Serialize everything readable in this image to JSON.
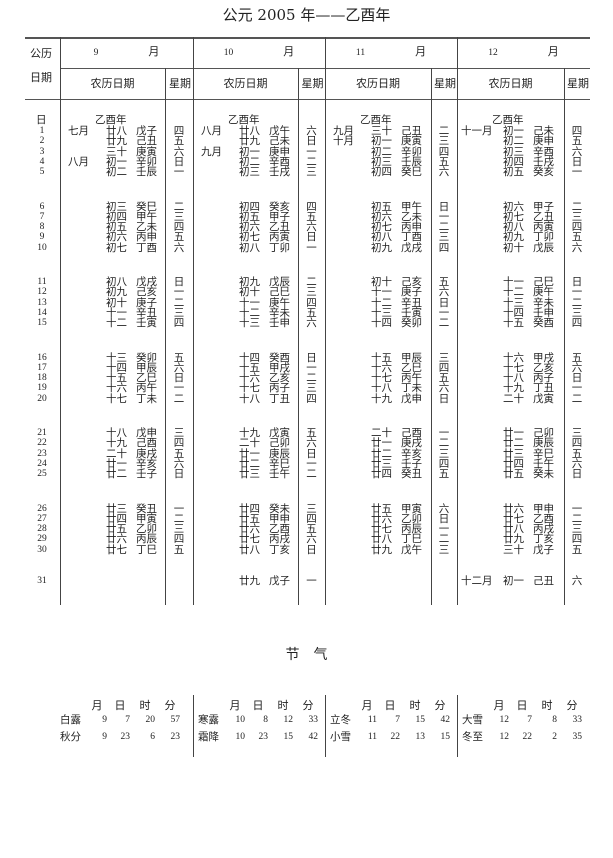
{
  "title": "公元 2005 年——乙酉年",
  "header": {
    "gregorian_date_label_1": "公历",
    "gregorian_date_label_2": "日期",
    "lunar_label": "农历日期",
    "weekday_label": "星期",
    "day_label": "日"
  },
  "days": [
    "1",
    "2",
    "3",
    "4",
    "5",
    "6",
    "7",
    "8",
    "9",
    "10",
    "11",
    "12",
    "13",
    "14",
    "15",
    "16",
    "17",
    "18",
    "19",
    "20",
    "21",
    "22",
    "23",
    "24",
    "25",
    "26",
    "27",
    "28",
    "29",
    "30",
    "31"
  ],
  "months": [
    {
      "num": "9",
      "unit": "月",
      "year_label": "乙酉年",
      "rows": [
        [
          "七月",
          "廿八",
          "戊子",
          "四"
        ],
        [
          "",
          "廿九",
          "己丑",
          "五"
        ],
        [
          "",
          "三十",
          "庚寅",
          "六"
        ],
        [
          "八月",
          "初一",
          "辛卯",
          "日"
        ],
        [
          "",
          "初二",
          "壬辰",
          "一"
        ],
        [
          "",
          "初三",
          "癸巳",
          "二"
        ],
        [
          "",
          "初四",
          "甲午",
          "三"
        ],
        [
          "",
          "初五",
          "乙未",
          "四"
        ],
        [
          "",
          "初六",
          "丙申",
          "五"
        ],
        [
          "",
          "初七",
          "丁酉",
          "六"
        ],
        [
          "",
          "初八",
          "戊戌",
          "日"
        ],
        [
          "",
          "初九",
          "己亥",
          "一"
        ],
        [
          "",
          "初十",
          "庚子",
          "二"
        ],
        [
          "",
          "十一",
          "辛丑",
          "三"
        ],
        [
          "",
          "十二",
          "壬寅",
          "四"
        ],
        [
          "",
          "十三",
          "癸卯",
          "五"
        ],
        [
          "",
          "十四",
          "甲辰",
          "六"
        ],
        [
          "",
          "十五",
          "乙巳",
          "日"
        ],
        [
          "",
          "十六",
          "丙午",
          "一"
        ],
        [
          "",
          "十七",
          "丁未",
          "二"
        ],
        [
          "",
          "十八",
          "戊申",
          "三"
        ],
        [
          "",
          "十九",
          "己酉",
          "四"
        ],
        [
          "",
          "二十",
          "庚戌",
          "五"
        ],
        [
          "",
          "廿一",
          "辛亥",
          "六"
        ],
        [
          "",
          "廿二",
          "壬子",
          "日"
        ],
        [
          "",
          "廿三",
          "癸丑",
          "一"
        ],
        [
          "",
          "廿四",
          "甲寅",
          "二"
        ],
        [
          "",
          "廿五",
          "乙卯",
          "三"
        ],
        [
          "",
          "廿六",
          "丙辰",
          "四"
        ],
        [
          "",
          "廿七",
          "丁巳",
          "五"
        ]
      ]
    },
    {
      "num": "10",
      "unit": "月",
      "year_label": "乙酉年",
      "rows": [
        [
          "八月",
          "廿八",
          "戊午",
          "六"
        ],
        [
          "",
          "廿九",
          "己未",
          "日"
        ],
        [
          "九月",
          "初一",
          "庚申",
          "一"
        ],
        [
          "",
          "初二",
          "辛酉",
          "二"
        ],
        [
          "",
          "初三",
          "壬戌",
          "三"
        ],
        [
          "",
          "初四",
          "癸亥",
          "四"
        ],
        [
          "",
          "初五",
          "甲子",
          "五"
        ],
        [
          "",
          "初六",
          "乙丑",
          "六"
        ],
        [
          "",
          "初七",
          "丙寅",
          "日"
        ],
        [
          "",
          "初八",
          "丁卯",
          "一"
        ],
        [
          "",
          "初九",
          "戊辰",
          "二"
        ],
        [
          "",
          "初十",
          "己巳",
          "三"
        ],
        [
          "",
          "十一",
          "庚午",
          "四"
        ],
        [
          "",
          "十二",
          "辛未",
          "五"
        ],
        [
          "",
          "十三",
          "壬申",
          "六"
        ],
        [
          "",
          "十四",
          "癸酉",
          "日"
        ],
        [
          "",
          "十五",
          "甲戌",
          "一"
        ],
        [
          "",
          "十六",
          "乙亥",
          "二"
        ],
        [
          "",
          "十七",
          "丙子",
          "三"
        ],
        [
          "",
          "十八",
          "丁丑",
          "四"
        ],
        [
          "",
          "十九",
          "戊寅",
          "五"
        ],
        [
          "",
          "二十",
          "己卯",
          "六"
        ],
        [
          "",
          "廿一",
          "庚辰",
          "日"
        ],
        [
          "",
          "廿二",
          "辛巳",
          "一"
        ],
        [
          "",
          "廿三",
          "壬午",
          "二"
        ],
        [
          "",
          "廿四",
          "癸未",
          "三"
        ],
        [
          "",
          "廿五",
          "甲申",
          "四"
        ],
        [
          "",
          "廿六",
          "乙酉",
          "五"
        ],
        [
          "",
          "廿七",
          "丙戌",
          "六"
        ],
        [
          "",
          "廿八",
          "丁亥",
          "日"
        ],
        [
          "",
          "廿九",
          "戊子",
          "一"
        ]
      ]
    },
    {
      "num": "11",
      "unit": "月",
      "year_label": "乙酉年",
      "rows": [
        [
          "九月",
          "三十",
          "己丑",
          "二"
        ],
        [
          "十月",
          "初一",
          "庚寅",
          "三"
        ],
        [
          "",
          "初二",
          "辛卯",
          "四"
        ],
        [
          "",
          "初三",
          "壬辰",
          "五"
        ],
        [
          "",
          "初四",
          "癸巳",
          "六"
        ],
        [
          "",
          "初五",
          "甲午",
          "日"
        ],
        [
          "",
          "初六",
          "乙未",
          "一"
        ],
        [
          "",
          "初七",
          "丙申",
          "二"
        ],
        [
          "",
          "初八",
          "丁酉",
          "三"
        ],
        [
          "",
          "初九",
          "戊戌",
          "四"
        ],
        [
          "",
          "初十",
          "己亥",
          "五"
        ],
        [
          "",
          "十一",
          "庚子",
          "六"
        ],
        [
          "",
          "十二",
          "辛丑",
          "日"
        ],
        [
          "",
          "十三",
          "壬寅",
          "一"
        ],
        [
          "",
          "十四",
          "癸卯",
          "二"
        ],
        [
          "",
          "十五",
          "甲辰",
          "三"
        ],
        [
          "",
          "十六",
          "乙巳",
          "四"
        ],
        [
          "",
          "十七",
          "丙午",
          "五"
        ],
        [
          "",
          "十八",
          "丁未",
          "六"
        ],
        [
          "",
          "十九",
          "戊申",
          "日"
        ],
        [
          "",
          "二十",
          "己酉",
          "一"
        ],
        [
          "",
          "廿一",
          "庚戌",
          "二"
        ],
        [
          "",
          "廿二",
          "辛亥",
          "三"
        ],
        [
          "",
          "廿三",
          "壬子",
          "四"
        ],
        [
          "",
          "廿四",
          "癸丑",
          "五"
        ],
        [
          "",
          "廿五",
          "甲寅",
          "六"
        ],
        [
          "",
          "廿六",
          "乙卯",
          "日"
        ],
        [
          "",
          "廿七",
          "丙辰",
          "一"
        ],
        [
          "",
          "廿八",
          "丁巳",
          "二"
        ],
        [
          "",
          "廿九",
          "戊午",
          "三"
        ]
      ]
    },
    {
      "num": "12",
      "unit": "月",
      "year_label": "乙酉年",
      "rows": [
        [
          "十一月",
          "初一",
          "己未",
          "四"
        ],
        [
          "",
          "初二",
          "庚申",
          "五"
        ],
        [
          "",
          "初三",
          "辛酉",
          "六"
        ],
        [
          "",
          "初四",
          "壬戌",
          "日"
        ],
        [
          "",
          "初五",
          "癸亥",
          "一"
        ],
        [
          "",
          "初六",
          "甲子",
          "二"
        ],
        [
          "",
          "初七",
          "乙丑",
          "三"
        ],
        [
          "",
          "初八",
          "丙寅",
          "四"
        ],
        [
          "",
          "初九",
          "丁卯",
          "五"
        ],
        [
          "",
          "初十",
          "戊辰",
          "六"
        ],
        [
          "",
          "十一",
          "己巳",
          "日"
        ],
        [
          "",
          "十二",
          "庚午",
          "一"
        ],
        [
          "",
          "十三",
          "辛未",
          "二"
        ],
        [
          "",
          "十四",
          "壬申",
          "三"
        ],
        [
          "",
          "十五",
          "癸酉",
          "四"
        ],
        [
          "",
          "十六",
          "甲戌",
          "五"
        ],
        [
          "",
          "十七",
          "乙亥",
          "六"
        ],
        [
          "",
          "十八",
          "丙子",
          "日"
        ],
        [
          "",
          "十九",
          "丁丑",
          "一"
        ],
        [
          "",
          "二十",
          "戊寅",
          "二"
        ],
        [
          "",
          "廿一",
          "己卯",
          "三"
        ],
        [
          "",
          "廿二",
          "庚辰",
          "四"
        ],
        [
          "",
          "廿三",
          "辛巳",
          "五"
        ],
        [
          "",
          "廿四",
          "壬午",
          "六"
        ],
        [
          "",
          "廿五",
          "癸未",
          "日"
        ],
        [
          "",
          "廿六",
          "甲申",
          "一"
        ],
        [
          "",
          "廿七",
          "乙酉",
          "二"
        ],
        [
          "",
          "廿八",
          "丙戌",
          "三"
        ],
        [
          "",
          "廿九",
          "丁亥",
          "四"
        ],
        [
          "",
          "三十",
          "戊子",
          "五"
        ],
        [
          "十二月",
          "初一",
          "己丑",
          "六"
        ]
      ]
    }
  ],
  "solar_terms": {
    "title": "节　气",
    "columns": [
      "月",
      "日",
      "时",
      "分"
    ],
    "blocks": [
      [
        [
          "白露",
          "9",
          "7",
          "20",
          "57"
        ],
        [
          "秋分",
          "9",
          "23",
          "6",
          "23"
        ]
      ],
      [
        [
          "寒露",
          "10",
          "8",
          "12",
          "33"
        ],
        [
          "霜降",
          "10",
          "23",
          "15",
          "42"
        ]
      ],
      [
        [
          "立冬",
          "11",
          "7",
          "15",
          "42"
        ],
        [
          "小雪",
          "11",
          "22",
          "13",
          "15"
        ]
      ],
      [
        [
          "大雪",
          "12",
          "7",
          "8",
          "33"
        ],
        [
          "冬至",
          "12",
          "22",
          "2",
          "35"
        ]
      ]
    ]
  }
}
